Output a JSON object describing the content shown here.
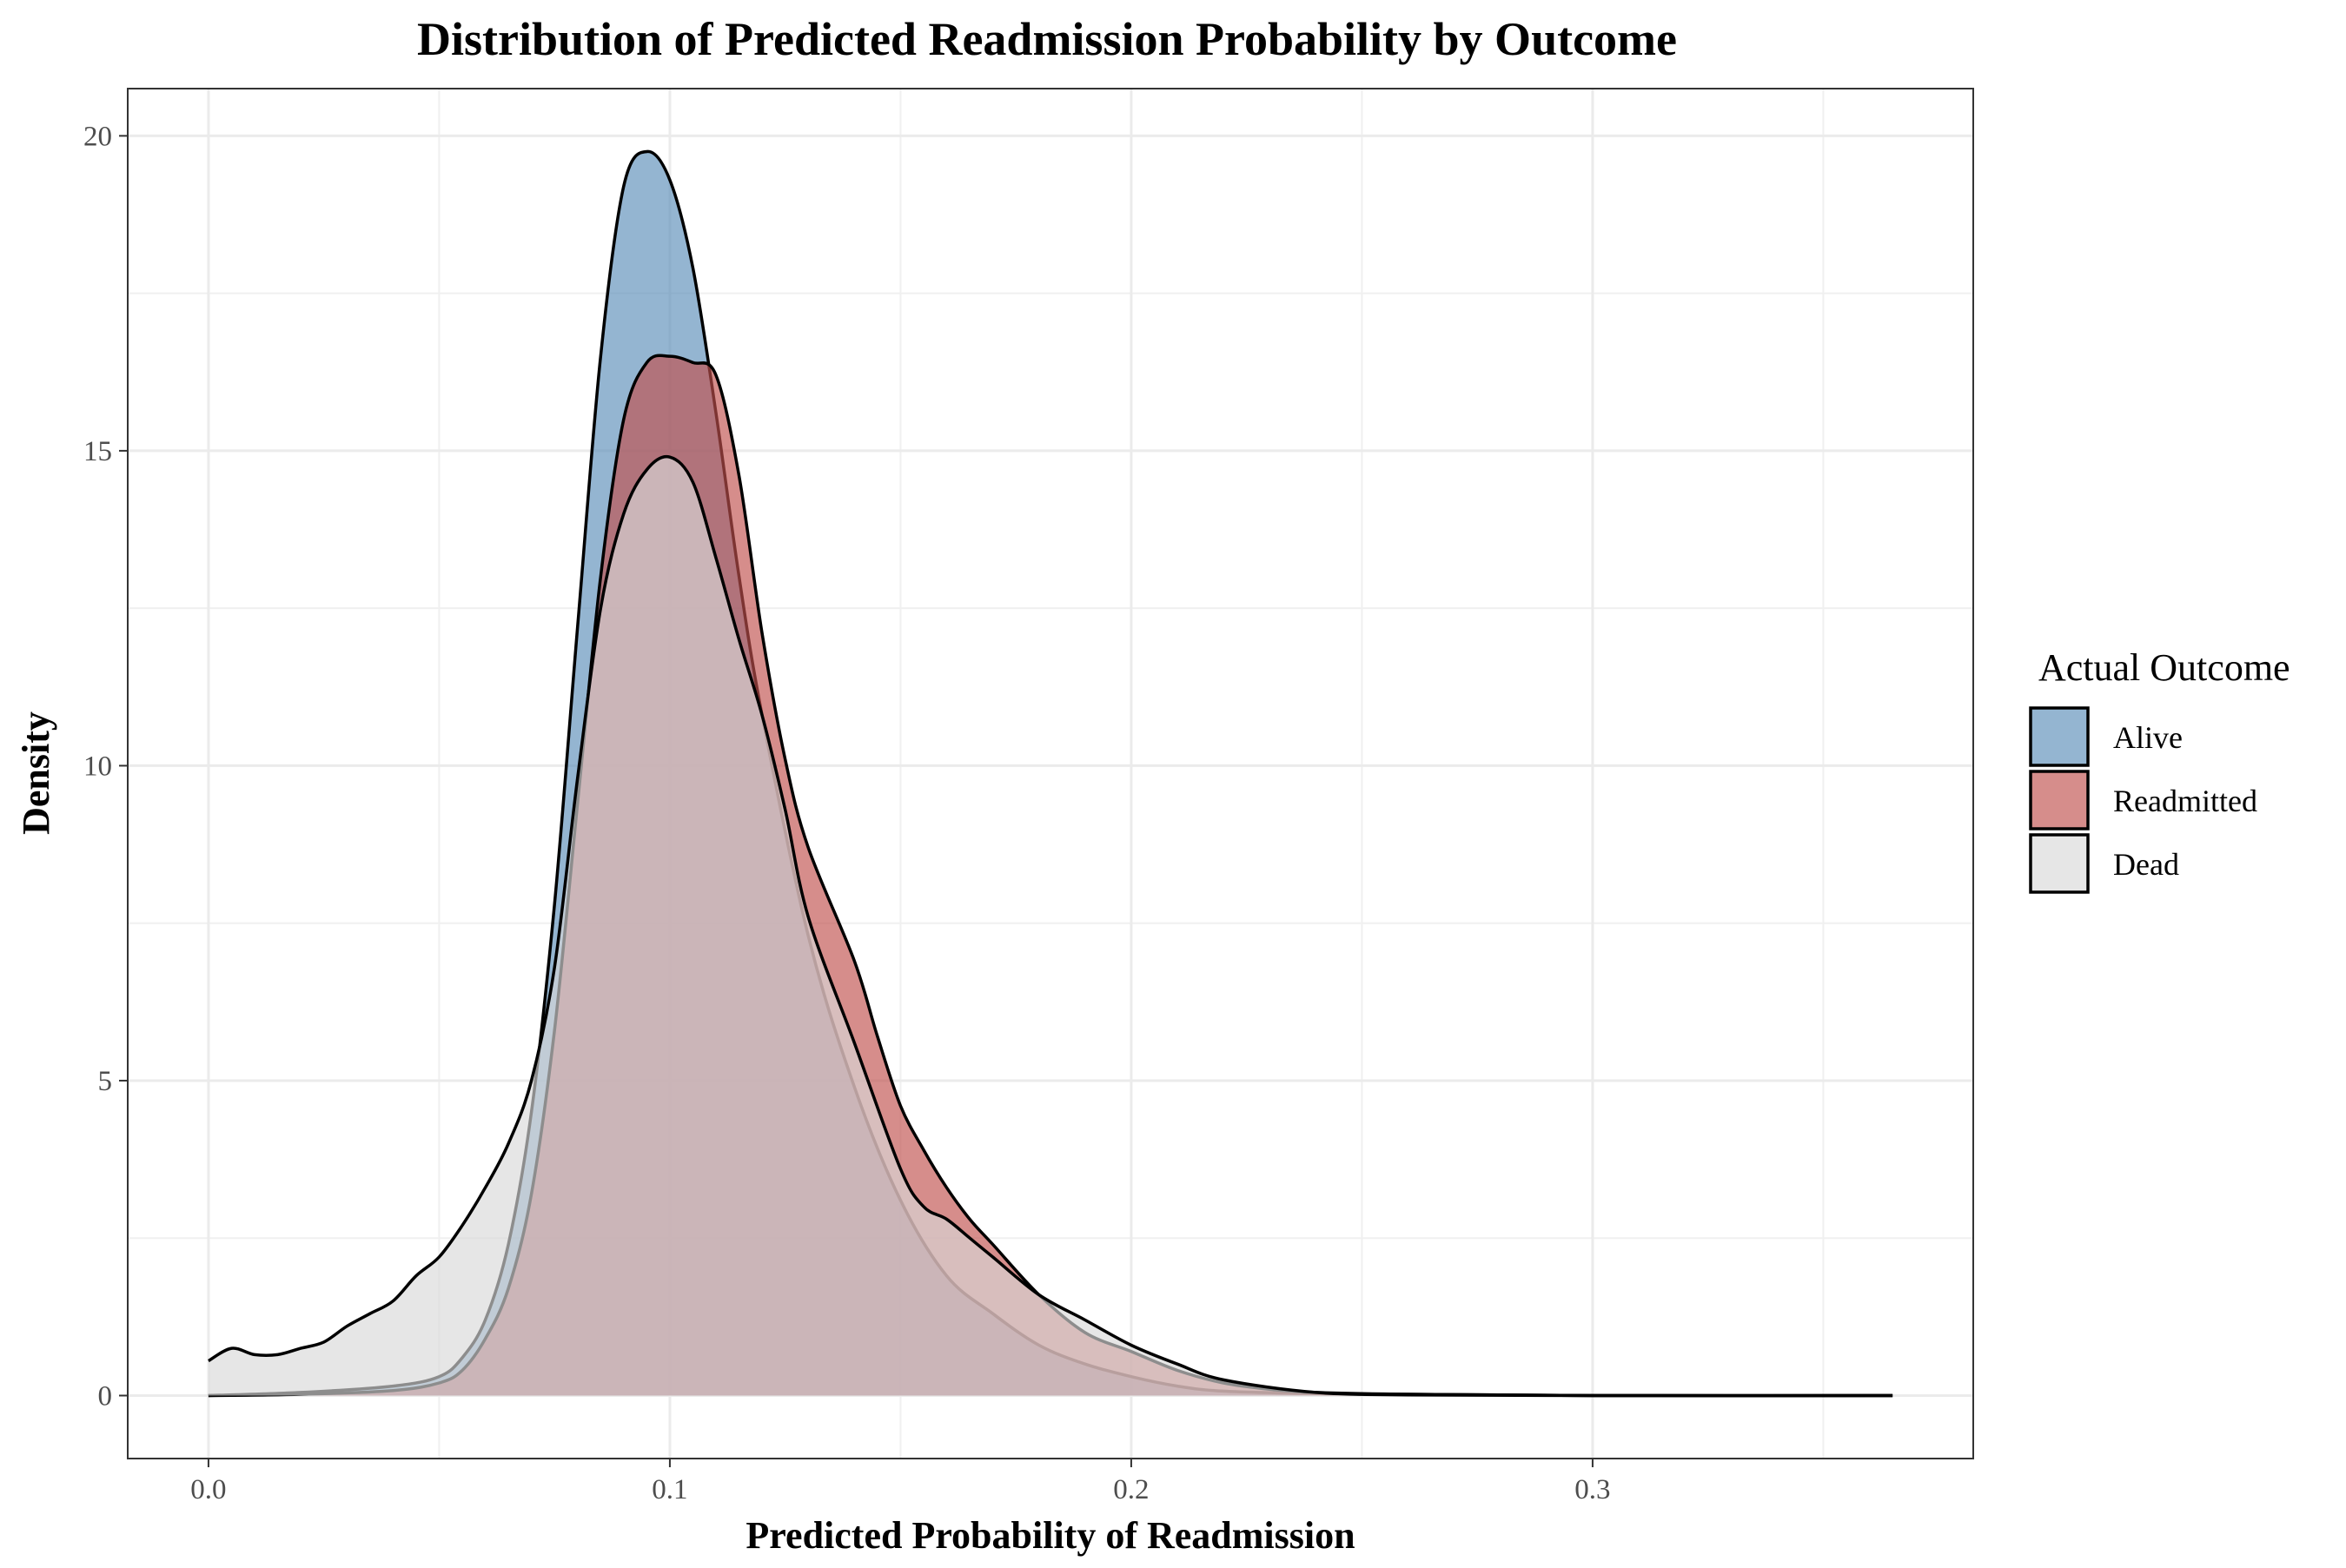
{
  "chart_data": {
    "type": "area",
    "title": "Distribution of Predicted Readmission Probability by Outcome",
    "xlabel": "Predicted Probability of Readmission",
    "ylabel": "Density",
    "xlim": [
      -0.0175,
      0.3825
    ],
    "ylim": [
      -1.0,
      20.75
    ],
    "xticks": [
      0.0,
      0.1,
      0.2,
      0.3
    ],
    "xtick_labels": [
      "0.0",
      "0.1",
      "0.2",
      "0.3"
    ],
    "yticks": [
      0,
      5,
      10,
      15,
      20
    ],
    "ytick_labels": [
      "0",
      "5",
      "10",
      "15",
      "20"
    ],
    "grid": true,
    "legend": {
      "title": "Actual Outcome",
      "position": "right",
      "entries": [
        "Alive",
        "Readmitted",
        "Dead"
      ]
    },
    "series": [
      {
        "name": "Alive",
        "color": "#5b8db8",
        "x": [
          0.0,
          0.02,
          0.04,
          0.05,
          0.055,
          0.06,
          0.065,
          0.07,
          0.075,
          0.08,
          0.085,
          0.09,
          0.095,
          0.1,
          0.105,
          0.11,
          0.115,
          0.12,
          0.13,
          0.14,
          0.15,
          0.16,
          0.17,
          0.18,
          0.19,
          0.2,
          0.21,
          0.22,
          0.24,
          0.26,
          0.3,
          0.365
        ],
        "y": [
          0.0,
          0.05,
          0.15,
          0.3,
          0.6,
          1.2,
          2.4,
          4.5,
          7.8,
          12.2,
          16.5,
          19.2,
          19.75,
          19.3,
          17.9,
          15.6,
          13.0,
          10.8,
          7.3,
          4.9,
          3.1,
          1.9,
          1.3,
          0.8,
          0.5,
          0.3,
          0.15,
          0.07,
          0.03,
          0.01,
          0.0,
          0.0
        ]
      },
      {
        "name": "Readmitted",
        "color": "#c0504d",
        "x": [
          0.0,
          0.02,
          0.04,
          0.05,
          0.055,
          0.06,
          0.065,
          0.07,
          0.075,
          0.08,
          0.085,
          0.09,
          0.095,
          0.1,
          0.105,
          0.11,
          0.115,
          0.12,
          0.125,
          0.13,
          0.14,
          0.145,
          0.15,
          0.155,
          0.16,
          0.165,
          0.17,
          0.18,
          0.19,
          0.2,
          0.21,
          0.22,
          0.23,
          0.24,
          0.26,
          0.3,
          0.365
        ],
        "y": [
          0.0,
          0.02,
          0.08,
          0.2,
          0.4,
          0.9,
          1.7,
          3.2,
          5.8,
          9.4,
          13.0,
          15.5,
          16.4,
          16.5,
          16.4,
          16.2,
          14.6,
          12.1,
          10.1,
          8.7,
          6.9,
          5.7,
          4.6,
          3.9,
          3.3,
          2.8,
          2.4,
          1.6,
          1.0,
          0.7,
          0.4,
          0.2,
          0.1,
          0.05,
          0.02,
          0.0,
          0.0
        ]
      },
      {
        "name": "Dead",
        "color": "#d9d9d9",
        "x": [
          0.0,
          0.005,
          0.01,
          0.015,
          0.02,
          0.025,
          0.03,
          0.035,
          0.04,
          0.045,
          0.05,
          0.055,
          0.06,
          0.065,
          0.07,
          0.075,
          0.08,
          0.085,
          0.09,
          0.095,
          0.1,
          0.105,
          0.11,
          0.115,
          0.12,
          0.125,
          0.13,
          0.14,
          0.15,
          0.155,
          0.16,
          0.165,
          0.17,
          0.18,
          0.19,
          0.2,
          0.21,
          0.22,
          0.24,
          0.26,
          0.3,
          0.365
        ],
        "y": [
          0.55,
          0.75,
          0.65,
          0.65,
          0.75,
          0.85,
          1.1,
          1.3,
          1.5,
          1.9,
          2.2,
          2.7,
          3.3,
          4.0,
          5.0,
          6.8,
          9.8,
          12.5,
          14.0,
          14.7,
          14.9,
          14.5,
          13.3,
          12.0,
          10.8,
          9.3,
          7.6,
          5.6,
          3.6,
          3.0,
          2.8,
          2.5,
          2.2,
          1.6,
          1.2,
          0.8,
          0.5,
          0.25,
          0.05,
          0.02,
          0.0,
          0.0
        ]
      }
    ]
  }
}
